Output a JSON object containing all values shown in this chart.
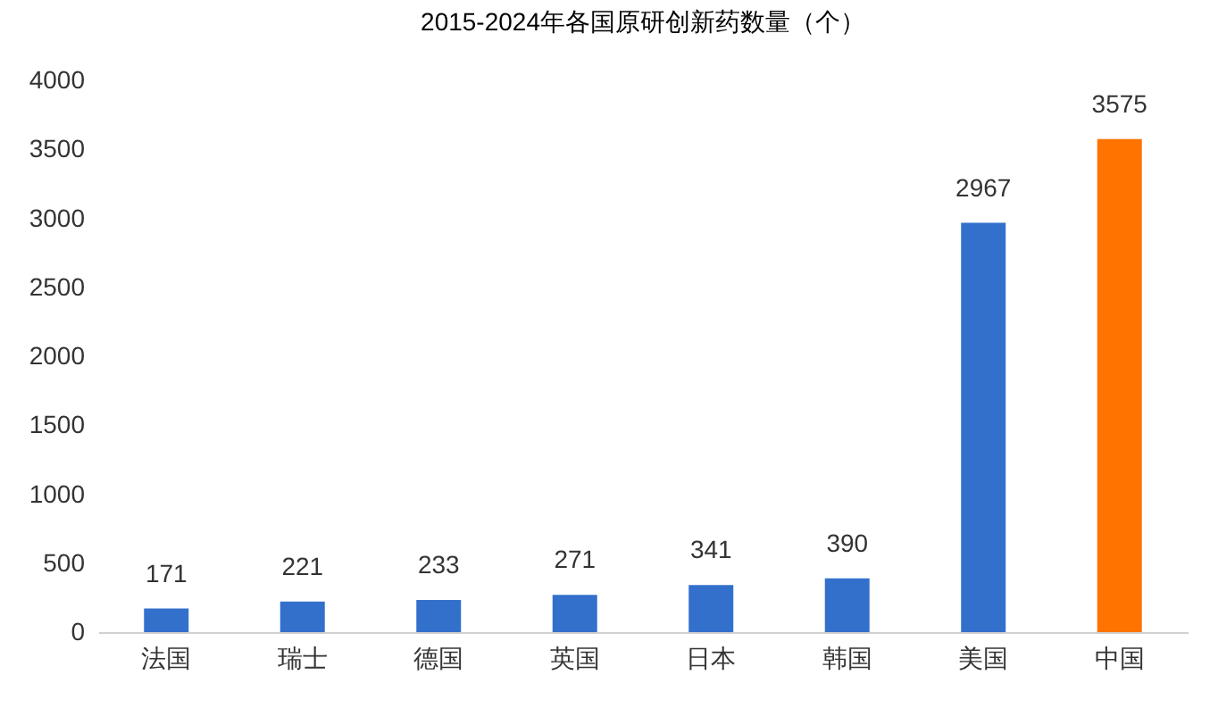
{
  "chart_data": {
    "type": "bar",
    "title": "2015-2024年各国原研创新药数量（个）",
    "categories": [
      "法国",
      "瑞士",
      "德国",
      "英国",
      "日本",
      "韩国",
      "美国",
      "中国"
    ],
    "values": [
      171,
      221,
      233,
      271,
      341,
      390,
      2967,
      3575
    ],
    "colors": [
      "#3370cc",
      "#3370cc",
      "#3370cc",
      "#3370cc",
      "#3370cc",
      "#3370cc",
      "#3370cc",
      "#ff7300"
    ],
    "ylim": [
      0,
      4000
    ],
    "yticks": [
      0,
      500,
      1000,
      1500,
      2000,
      2500,
      3000,
      3500,
      4000
    ],
    "grid": false,
    "data_labels": true
  }
}
